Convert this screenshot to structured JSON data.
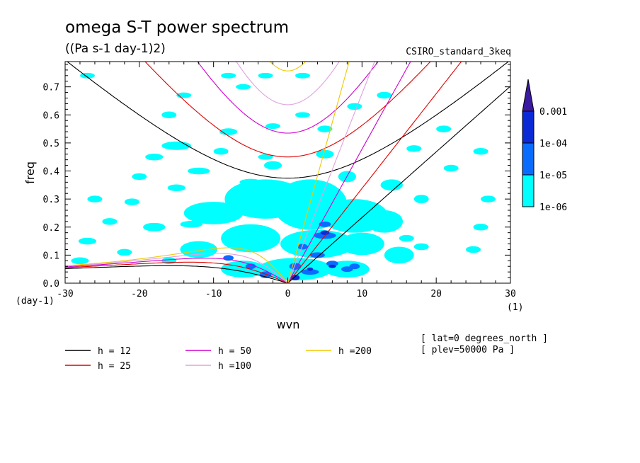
{
  "header": {
    "title": "omega S-T power spectrum",
    "units": "((Pa s-1 day-1)2)",
    "model": "CSIRO_standard_3keq"
  },
  "info": {
    "lat": "[ lat=0 degrees_north ]",
    "plev": "[ plev=50000 Pa ]"
  },
  "chart_data": {
    "type": "contour",
    "title": "omega S-T power spectrum",
    "subtitle": "((Pa s-1 day-1)2)",
    "xlabel": "wvn",
    "ylabel": "freq",
    "x_units": "(1)",
    "y_units": "(day-1)",
    "xlim": [
      -30,
      30
    ],
    "ylim": [
      0,
      0.79
    ],
    "x_ticks": [
      -30,
      -20,
      -10,
      0,
      10,
      20,
      30
    ],
    "x_tick_labels": [
      "-30",
      "-20",
      "-10",
      "0",
      "10",
      "20",
      "30"
    ],
    "y_ticks": [
      0.0,
      0.1,
      0.2,
      0.3,
      0.4,
      0.5,
      0.6,
      0.7
    ],
    "y_tick_labels": [
      "0.0",
      "0.1",
      "0.2",
      "0.3",
      "0.4",
      "0.5",
      "0.6",
      "0.7"
    ],
    "colorbar": {
      "levels": [
        "1e-06",
        "1e-05",
        "1e-04",
        "0.001"
      ],
      "colors": [
        "#00ffff",
        "#0a6cff",
        "#0a2ad6",
        "#3a1aa0"
      ]
    },
    "contour_regions": {
      "cyan_blobs": [
        [
          -27,
          0.74,
          1.0,
          0.01
        ],
        [
          -26,
          0.3,
          1.0,
          0.012
        ],
        [
          -27,
          0.15,
          1.2,
          0.012
        ],
        [
          -16,
          0.6,
          1.0,
          0.012
        ],
        [
          -14,
          0.67,
          1.0,
          0.01
        ],
        [
          -8,
          0.74,
          1.0,
          0.01
        ],
        [
          -3,
          0.74,
          1.0,
          0.01
        ],
        [
          2,
          0.74,
          1.0,
          0.01
        ],
        [
          -6,
          0.7,
          1.0,
          0.01
        ],
        [
          -15,
          0.49,
          2.0,
          0.015
        ],
        [
          -8,
          0.54,
          1.2,
          0.012
        ],
        [
          -18,
          0.45,
          1.2,
          0.012
        ],
        [
          -9,
          0.47,
          1.0,
          0.012
        ],
        [
          -3,
          0.45,
          1.0,
          0.01
        ],
        [
          -12,
          0.4,
          1.5,
          0.012
        ],
        [
          -20,
          0.38,
          1.0,
          0.012
        ],
        [
          -15,
          0.34,
          1.2,
          0.012
        ],
        [
          -5,
          0.36,
          1.5,
          0.012
        ],
        [
          -21,
          0.29,
          1.0,
          0.012
        ],
        [
          -24,
          0.22,
          1.0,
          0.012
        ],
        [
          -18,
          0.2,
          1.5,
          0.015
        ],
        [
          -28,
          0.08,
          1.2,
          0.012
        ],
        [
          -22,
          0.11,
          1.0,
          0.012
        ],
        [
          -16,
          0.08,
          1.0,
          0.012
        ],
        [
          -13,
          0.21,
          1.5,
          0.012
        ],
        [
          -3,
          0.3,
          5.5,
          0.07
        ],
        [
          3,
          0.28,
          5.0,
          0.09
        ],
        [
          9,
          0.24,
          4.5,
          0.06
        ],
        [
          -10,
          0.25,
          4.0,
          0.04
        ],
        [
          -5,
          0.16,
          4.0,
          0.05
        ],
        [
          4,
          0.14,
          5.0,
          0.05
        ],
        [
          10,
          0.14,
          3.0,
          0.04
        ],
        [
          13,
          0.22,
          2.5,
          0.04
        ],
        [
          -12,
          0.12,
          2.5,
          0.03
        ],
        [
          1,
          0.05,
          5.0,
          0.04
        ],
        [
          -6,
          0.05,
          3.0,
          0.03
        ],
        [
          8,
          0.05,
          3.0,
          0.03
        ],
        [
          15,
          0.1,
          2.0,
          0.03
        ],
        [
          14,
          0.35,
          1.5,
          0.02
        ],
        [
          18,
          0.3,
          1.0,
          0.015
        ],
        [
          18,
          0.13,
          1.0,
          0.012
        ],
        [
          25,
          0.12,
          1.0,
          0.012
        ],
        [
          26,
          0.2,
          1.0,
          0.012
        ],
        [
          27,
          0.3,
          1.0,
          0.012
        ],
        [
          22,
          0.41,
          1.0,
          0.012
        ],
        [
          26,
          0.47,
          1.0,
          0.012
        ],
        [
          21,
          0.55,
          1.0,
          0.012
        ],
        [
          13,
          0.67,
          1.0,
          0.012
        ],
        [
          8,
          0.38,
          1.2,
          0.02
        ],
        [
          5,
          0.46,
          1.2,
          0.015
        ],
        [
          -2,
          0.42,
          1.2,
          0.015
        ],
        [
          9,
          0.63,
          1.0,
          0.012
        ],
        [
          5,
          0.55,
          1.0,
          0.012
        ],
        [
          2,
          0.6,
          1.0,
          0.01
        ],
        [
          -2,
          0.56,
          1.0,
          0.01
        ],
        [
          17,
          0.48,
          1.0,
          0.012
        ],
        [
          16,
          0.16,
          1.0,
          0.012
        ]
      ],
      "blue_blobs": [
        [
          5,
          0.17,
          1.5,
          0.012
        ],
        [
          4,
          0.1,
          1.0,
          0.01
        ],
        [
          1,
          0.06,
          0.8,
          0.012
        ],
        [
          3,
          0.04,
          1.2,
          0.01
        ],
        [
          6,
          0.07,
          0.8,
          0.01
        ],
        [
          8,
          0.05,
          0.8,
          0.01
        ],
        [
          -3,
          0.03,
          0.8,
          0.012
        ],
        [
          -5,
          0.06,
          0.7,
          0.01
        ],
        [
          -8,
          0.09,
          0.7,
          0.01
        ],
        [
          5,
          0.21,
          0.8,
          0.01
        ],
        [
          2,
          0.13,
          0.7,
          0.01
        ],
        [
          9,
          0.06,
          0.7,
          0.01
        ]
      ],
      "navy_blobs": [
        [
          1,
          0.02,
          0.6,
          0.01
        ],
        [
          5,
          0.18,
          0.6,
          0.008
        ],
        [
          6,
          0.06,
          0.5,
          0.006
        ],
        [
          3,
          0.05,
          0.4,
          0.006
        ]
      ]
    },
    "dispersion_curves": {
      "h_values": [
        12,
        25,
        50,
        100,
        200
      ],
      "colors": {
        "12": "#000000",
        "25": "#e00000",
        "50": "#d000d0",
        "100": "#e0a0e0",
        "200": "#f0c800"
      },
      "legend": [
        "h = 12",
        "h = 25",
        "h = 50",
        "h =100",
        "h =200"
      ]
    }
  }
}
